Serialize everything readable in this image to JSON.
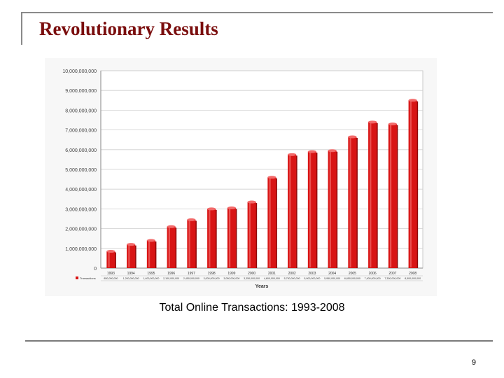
{
  "slide": {
    "title": "Revolutionary Results",
    "caption": "Total Online Transactions: 1993-2008",
    "page_number": "9"
  },
  "colors": {
    "bar": "#d81515",
    "bar_dark": "#8f0a0a",
    "bar_light": "#f26a6a",
    "grid": "#cfcfcf",
    "title": "#7a0d0d"
  },
  "chart_data": {
    "type": "bar",
    "title": "",
    "xlabel": "Years",
    "ylabel": "",
    "ylim": [
      0,
      10000000000
    ],
    "y_ticks": [
      "0",
      "1,000,000,000",
      "2,000,000,000",
      "3,000,000,000",
      "4,000,000,000",
      "5,000,000,000",
      "6,000,000,000",
      "7,000,000,000",
      "8,000,000,000",
      "9,000,000,000",
      "10,000,000,000"
    ],
    "grid": true,
    "categories": [
      "1993",
      "1994",
      "1995",
      "1996",
      "1997",
      "1998",
      "1999",
      "2000",
      "2001",
      "2002",
      "2003",
      "2004",
      "2005",
      "2006",
      "2007",
      "2008"
    ],
    "series": [
      {
        "name": "Transactions",
        "values": [
          850000000,
          1200000000,
          1400000000,
          2100000000,
          2450000000,
          3000000000,
          3050000000,
          3350000000,
          4600000000,
          5750000000,
          5900000000,
          5950000000,
          6650000000,
          7400000000,
          7300000000,
          8500000000
        ]
      }
    ]
  }
}
